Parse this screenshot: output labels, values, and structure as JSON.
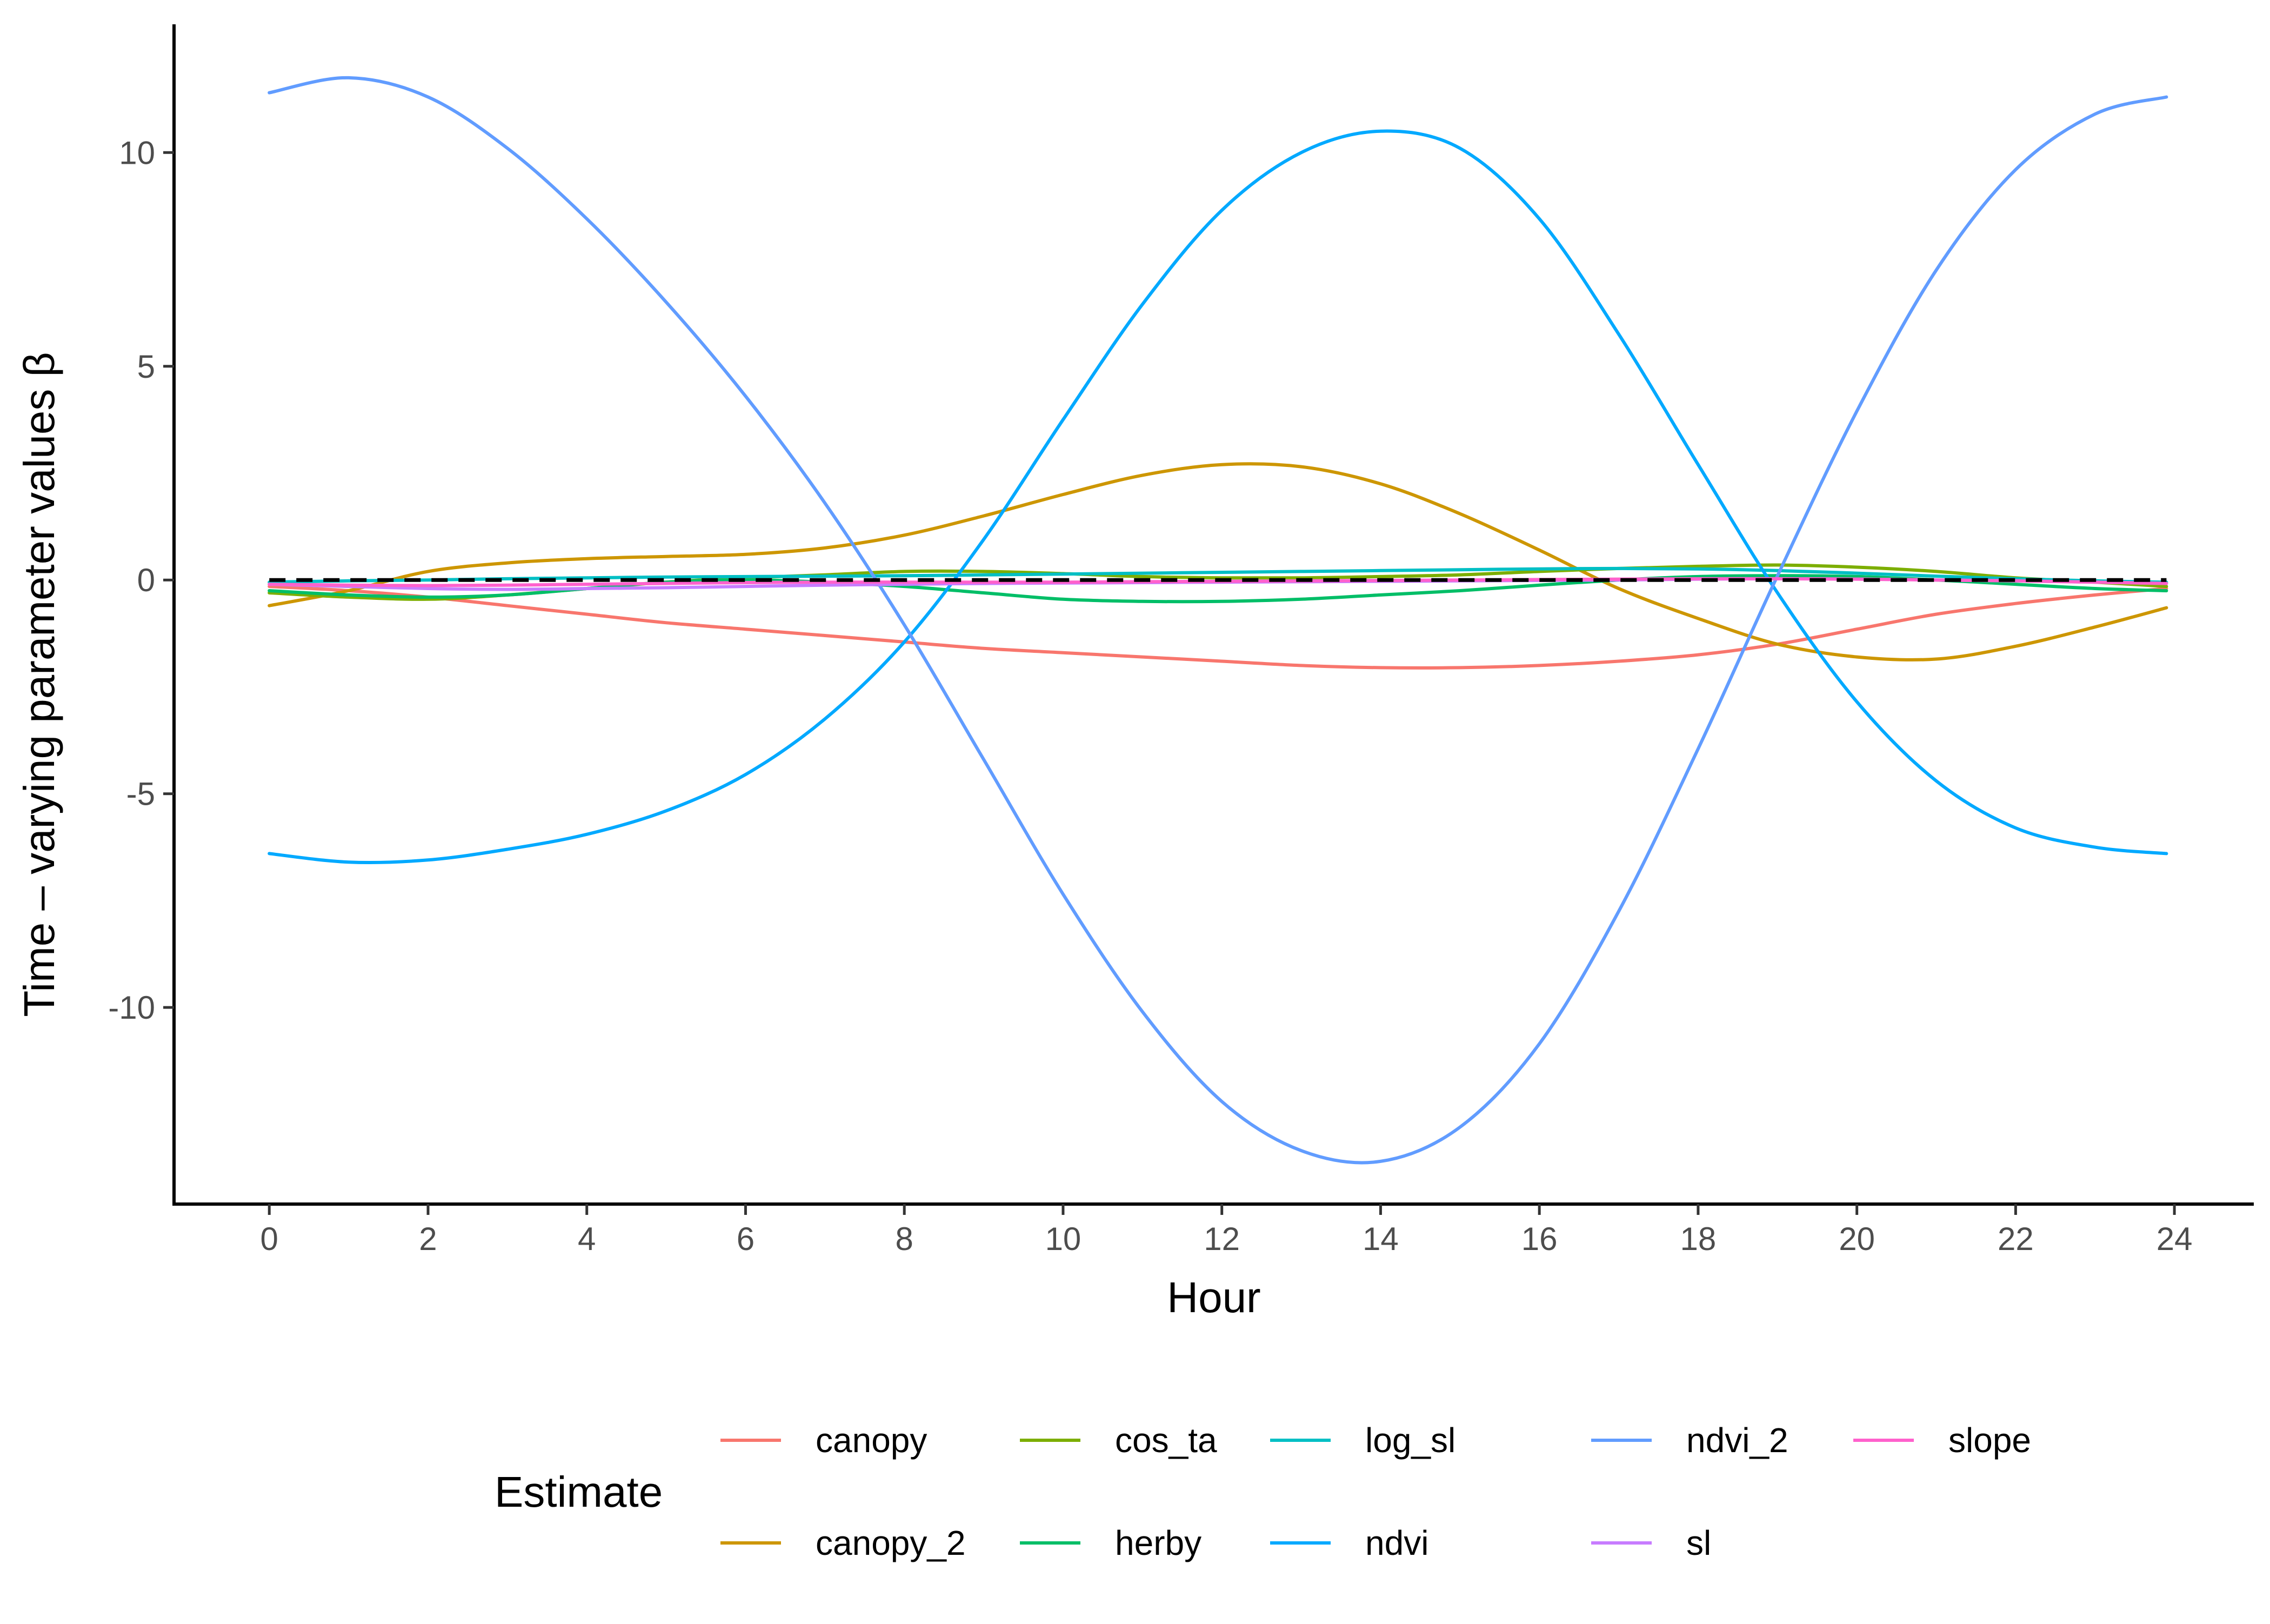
{
  "chart_data": {
    "type": "line",
    "title": "",
    "xlabel": "Hour",
    "ylabel": "Time – varying parameter values β",
    "xlim": [
      -1.2,
      25.0
    ],
    "ylim": [
      -14.6,
      13.0
    ],
    "x_ticks": [
      0,
      2,
      4,
      6,
      8,
      10,
      12,
      14,
      16,
      18,
      20,
      22,
      24
    ],
    "y_ticks": [
      -10,
      -5,
      0,
      5,
      10
    ],
    "y_tick_labels": [
      "-10",
      "-5",
      "0",
      "5",
      "10"
    ],
    "grid": false,
    "reference_line": {
      "y": 0,
      "style": "dashed",
      "color": "#000000"
    },
    "legend": {
      "title": "Estimate",
      "position": "bottom"
    },
    "x": [
      0,
      1,
      2,
      3,
      4,
      5,
      6,
      7,
      8,
      9,
      10,
      11,
      12,
      13,
      14,
      15,
      16,
      17,
      18,
      19,
      20,
      21,
      22,
      23,
      23.9
    ],
    "series": [
      {
        "name": "canopy",
        "color": "#F8766D",
        "values": [
          -0.15,
          -0.25,
          -0.4,
          -0.6,
          -0.8,
          -1.0,
          -1.15,
          -1.3,
          -1.45,
          -1.6,
          -1.7,
          -1.8,
          -1.9,
          -2.0,
          -2.05,
          -2.05,
          -2.0,
          -1.9,
          -1.75,
          -1.5,
          -1.15,
          -0.8,
          -0.55,
          -0.35,
          -0.2
        ]
      },
      {
        "name": "canopy_2",
        "color": "#CD9600",
        "values": [
          -0.6,
          -0.25,
          0.2,
          0.4,
          0.5,
          0.55,
          0.6,
          0.75,
          1.05,
          1.5,
          2.0,
          2.45,
          2.7,
          2.65,
          2.25,
          1.55,
          0.7,
          -0.2,
          -0.9,
          -1.5,
          -1.8,
          -1.85,
          -1.55,
          -1.1,
          -0.65
        ]
      },
      {
        "name": "cos_ta",
        "color": "#7CAE00",
        "values": [
          -0.3,
          -0.4,
          -0.45,
          -0.35,
          -0.2,
          -0.05,
          0.05,
          0.12,
          0.2,
          0.2,
          0.15,
          0.08,
          0.05,
          0.05,
          0.08,
          0.12,
          0.2,
          0.27,
          0.32,
          0.35,
          0.3,
          0.2,
          0.05,
          -0.05,
          -0.15
        ]
      },
      {
        "name": "herby",
        "color": "#00BE67",
        "values": [
          -0.25,
          -0.35,
          -0.4,
          -0.35,
          -0.2,
          -0.05,
          0.0,
          -0.05,
          -0.15,
          -0.3,
          -0.45,
          -0.5,
          -0.5,
          -0.45,
          -0.35,
          -0.25,
          -0.12,
          0.0,
          0.08,
          0.1,
          0.08,
          0.0,
          -0.1,
          -0.2,
          -0.25
        ]
      },
      {
        "name": "log_sl",
        "color": "#00BFC4",
        "values": [
          -0.05,
          -0.02,
          0.0,
          0.03,
          0.05,
          0.07,
          0.08,
          0.09,
          0.1,
          0.12,
          0.14,
          0.16,
          0.18,
          0.2,
          0.22,
          0.24,
          0.26,
          0.27,
          0.26,
          0.22,
          0.16,
          0.09,
          0.03,
          -0.02,
          -0.05
        ]
      },
      {
        "name": "ndvi",
        "color": "#00A9FF",
        "values": [
          -6.4,
          -6.6,
          -6.55,
          -6.3,
          -5.95,
          -5.4,
          -4.55,
          -3.25,
          -1.45,
          0.95,
          3.75,
          6.45,
          8.65,
          10.0,
          10.5,
          10.1,
          8.45,
          5.75,
          2.7,
          -0.3,
          -2.85,
          -4.7,
          -5.8,
          -6.25,
          -6.4
        ]
      },
      {
        "name": "ndvi_2",
        "color": "#619CFF",
        "values": [
          11.4,
          11.75,
          11.3,
          10.1,
          8.45,
          6.5,
          4.3,
          1.8,
          -1.05,
          -4.2,
          -7.35,
          -10.1,
          -12.2,
          -13.35,
          -13.6,
          -12.8,
          -10.85,
          -7.75,
          -3.95,
          0.1,
          3.95,
          7.25,
          9.6,
          10.9,
          11.3
        ]
      },
      {
        "name": "sl",
        "color": "#C77CFF",
        "values": [
          -0.1,
          -0.15,
          -0.2,
          -0.22,
          -0.2,
          -0.18,
          -0.15,
          -0.12,
          -0.1,
          -0.08,
          -0.07,
          -0.06,
          -0.05,
          -0.04,
          -0.03,
          -0.02,
          -0.01,
          0.0,
          0.02,
          0.03,
          0.02,
          0.0,
          -0.02,
          -0.05,
          -0.08
        ]
      },
      {
        "name": "slope",
        "color": "#FF61CC",
        "values": [
          -0.1,
          -0.12,
          -0.13,
          -0.12,
          -0.1,
          -0.08,
          -0.06,
          -0.05,
          -0.05,
          -0.05,
          -0.05,
          -0.04,
          -0.03,
          -0.02,
          -0.01,
          0.0,
          0.01,
          0.02,
          0.03,
          0.03,
          0.02,
          0.0,
          -0.02,
          -0.05,
          -0.08
        ]
      }
    ]
  }
}
